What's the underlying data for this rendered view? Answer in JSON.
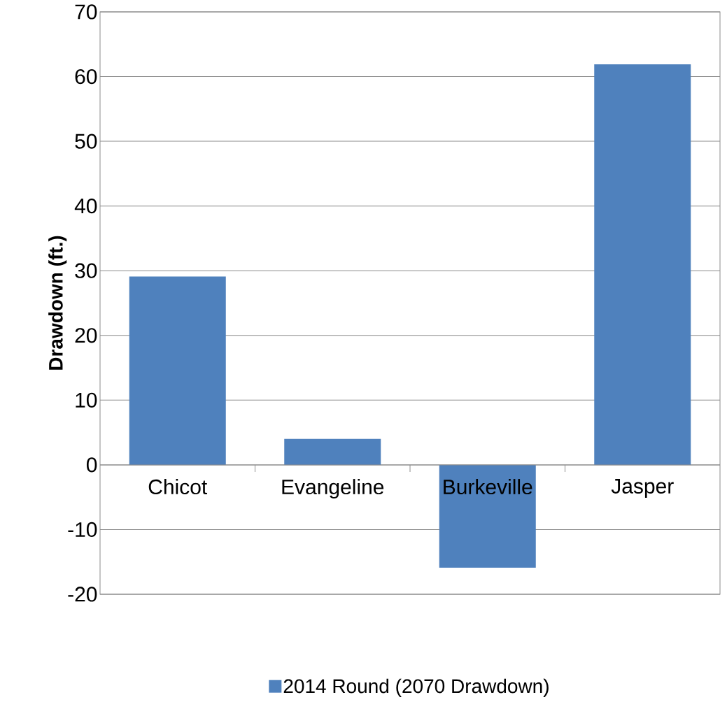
{
  "chart_data": {
    "type": "bar",
    "ylabel": "**Drawdown (ft.)**",
    "categories": [
      "Chicot",
      "Evangeline",
      "Burkeville",
      "Jasper"
    ],
    "series": [
      {
        "name": "2014 Round (2070 Drawdown)",
        "color": "#4f81bd",
        "values": [
          29.1,
          4.0,
          -15.9,
          61.9
        ]
      }
    ],
    "ylim": [
      -20,
      70
    ],
    "yticks": [
      -20,
      -10,
      0,
      10,
      20,
      30,
      40,
      50,
      60,
      70
    ],
    "grid": "y",
    "legend": "bottom"
  }
}
